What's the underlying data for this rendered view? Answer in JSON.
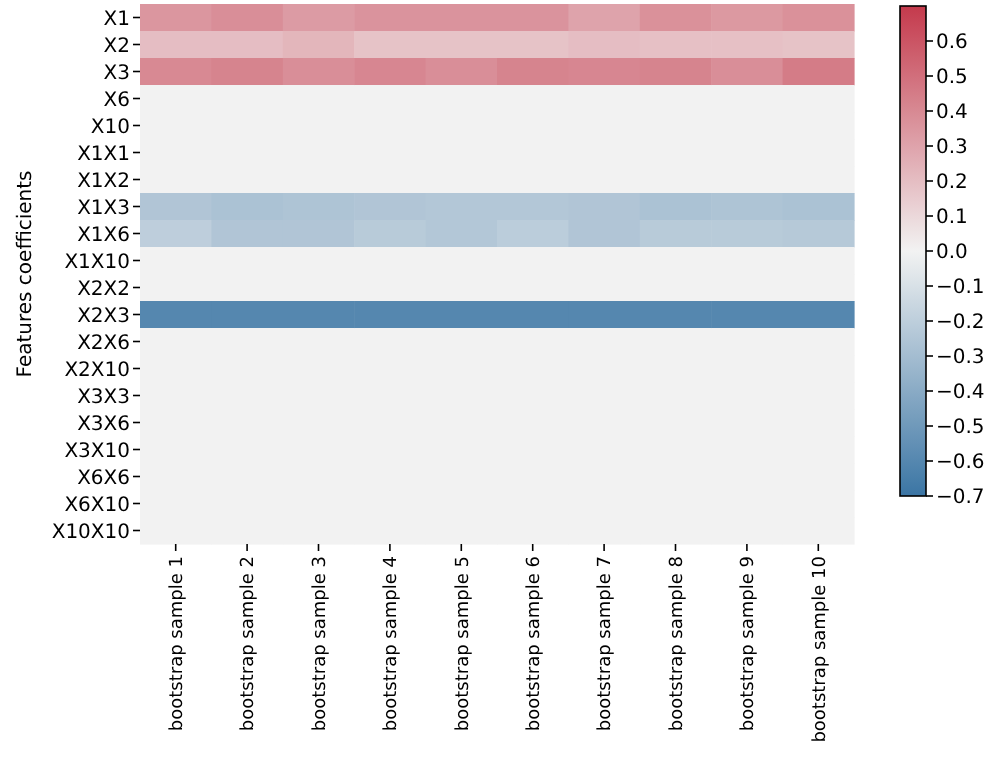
{
  "chart_data": {
    "type": "heatmap",
    "ylabel": "Features coefficients",
    "categories": [
      "bootstrap sample 1",
      "bootstrap sample 2",
      "bootstrap sample 3",
      "bootstrap sample 4",
      "bootstrap sample 5",
      "bootstrap sample 6",
      "bootstrap sample 7",
      "bootstrap sample 8",
      "bootstrap sample 9",
      "bootstrap sample 10"
    ],
    "y_categories": [
      "X1",
      "X2",
      "X3",
      "X6",
      "X10",
      "X1X1",
      "X1X2",
      "X1X3",
      "X1X6",
      "X1X10",
      "X2X2",
      "X2X3",
      "X2X6",
      "X2X10",
      "X3X3",
      "X3X6",
      "X3X10",
      "X6X6",
      "X6X10",
      "X10X10"
    ],
    "cells": [
      [
        0.35,
        0.38,
        0.33,
        0.36,
        0.36,
        0.36,
        0.3,
        0.37,
        0.34,
        0.37
      ],
      [
        0.2,
        0.2,
        0.23,
        0.18,
        0.18,
        0.18,
        0.2,
        0.19,
        0.19,
        0.18
      ],
      [
        0.4,
        0.42,
        0.38,
        0.41,
        0.38,
        0.42,
        0.41,
        0.42,
        0.38,
        0.45
      ],
      [
        0,
        0,
        0,
        0,
        0,
        0,
        0,
        0,
        0,
        0
      ],
      [
        0,
        0,
        0,
        0,
        0,
        0,
        0,
        0,
        0,
        0
      ],
      [
        0,
        0,
        0,
        0,
        0,
        0,
        0,
        0,
        0,
        0
      ],
      [
        0,
        0,
        0,
        0,
        0,
        0,
        0,
        0,
        0,
        0
      ],
      [
        -0.25,
        -0.27,
        -0.26,
        -0.25,
        -0.24,
        -0.24,
        -0.25,
        -0.27,
        -0.26,
        -0.27
      ],
      [
        -0.2,
        -0.25,
        -0.25,
        -0.22,
        -0.24,
        -0.21,
        -0.25,
        -0.22,
        -0.22,
        -0.23
      ],
      [
        0,
        0,
        0,
        0,
        0,
        0,
        0,
        0,
        0,
        0
      ],
      [
        0,
        0,
        0,
        0,
        0,
        0,
        0,
        0,
        0,
        0
      ],
      [
        -0.6,
        -0.6,
        -0.6,
        -0.6,
        -0.6,
        -0.6,
        -0.6,
        -0.6,
        -0.6,
        -0.6
      ],
      [
        0,
        0,
        0,
        0,
        0,
        0,
        0,
        0,
        0,
        0
      ],
      [
        0,
        0,
        0,
        0,
        0,
        0,
        0,
        0,
        0,
        0
      ],
      [
        0,
        0,
        0,
        0,
        0,
        0,
        0,
        0,
        0,
        0
      ],
      [
        0,
        0,
        0,
        0,
        0,
        0,
        0,
        0,
        0,
        0
      ],
      [
        0,
        0,
        0,
        0,
        0,
        0,
        0,
        0,
        0,
        0
      ],
      [
        0,
        0,
        0,
        0,
        0,
        0,
        0,
        0,
        0,
        0
      ],
      [
        0,
        0,
        0,
        0,
        0,
        0,
        0,
        0,
        0,
        0
      ],
      [
        0,
        0,
        0,
        0,
        0,
        0,
        0,
        0,
        0,
        0
      ]
    ],
    "clim": [
      -0.7,
      0.7
    ],
    "cticks": [
      {
        "value": -0.7,
        "label": "−0.7"
      },
      {
        "value": -0.6,
        "label": "−0.6"
      },
      {
        "value": -0.5,
        "label": "−0.5"
      },
      {
        "value": -0.4,
        "label": "−0.4"
      },
      {
        "value": -0.3,
        "label": "−0.3"
      },
      {
        "value": -0.2,
        "label": "−0.2"
      },
      {
        "value": -0.1,
        "label": "−0.1"
      },
      {
        "value": 0,
        "label": "0.0"
      },
      0.1,
      0.2,
      0.3,
      0.4,
      0.5,
      0.6
    ]
  }
}
